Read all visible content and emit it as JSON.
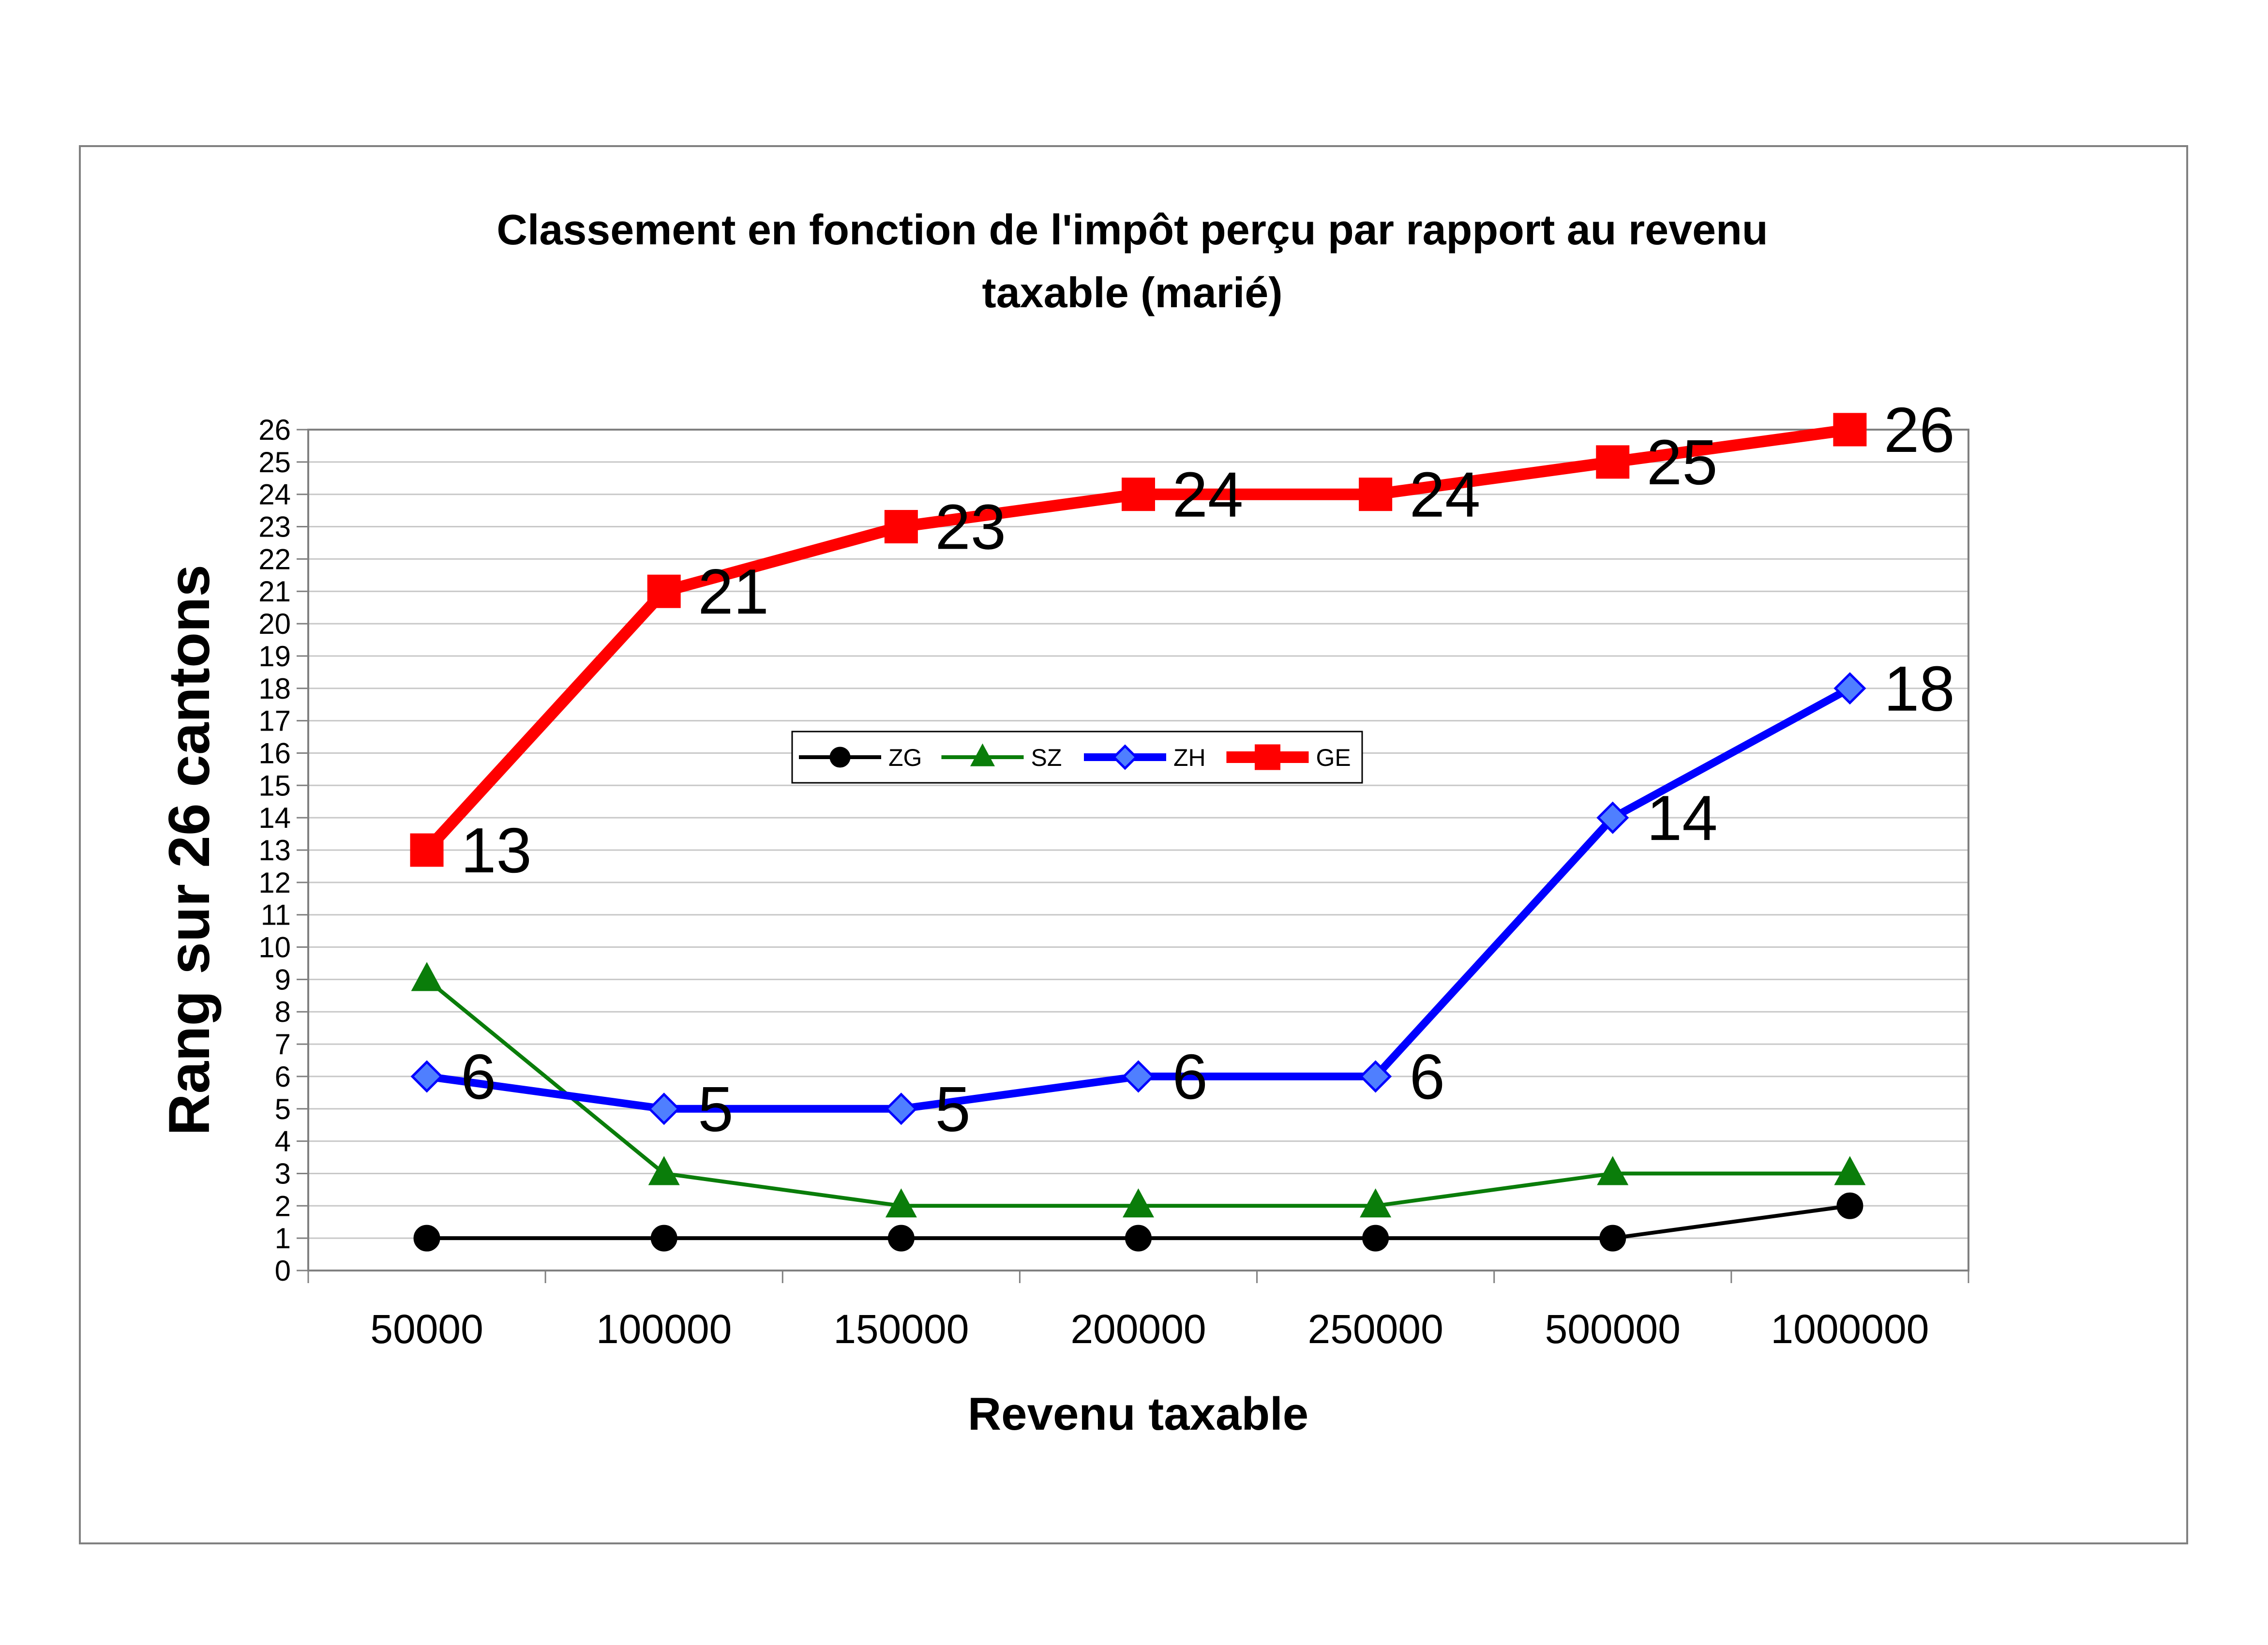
{
  "chart_data": {
    "type": "line",
    "title": "Classement en fonction de l'impôt perçu par rapport au revenu taxable (marié)",
    "title_lines": [
      "Classement en fonction de l'impôt perçu par rapport au revenu",
      "taxable (marié)"
    ],
    "xlabel": "Revenu taxable",
    "ylabel": "Rang sur 26 cantons",
    "categories": [
      "50000",
      "100000",
      "150000",
      "200000",
      "250000",
      "500000",
      "1000000"
    ],
    "ylim": [
      0,
      26
    ],
    "ytick_step": 1,
    "grid": "horizontal",
    "legend_position": "center",
    "series": [
      {
        "name": "ZG",
        "values": [
          1,
          1,
          1,
          1,
          1,
          1,
          2
        ],
        "color": "#000000",
        "marker": "circle",
        "data_labels": false
      },
      {
        "name": "SZ",
        "values": [
          9,
          3,
          2,
          2,
          2,
          3,
          3
        ],
        "color": "#0a7d0a",
        "marker": "triangle",
        "data_labels": false
      },
      {
        "name": "ZH",
        "values": [
          6,
          5,
          5,
          6,
          6,
          14,
          18
        ],
        "color": "#0000ff",
        "marker": "diamond",
        "marker_fill": "#4f7fff",
        "data_labels": true
      },
      {
        "name": "GE",
        "values": [
          13,
          21,
          23,
          24,
          24,
          25,
          26
        ],
        "color": "#ff0000",
        "marker": "square",
        "data_labels": true
      }
    ]
  }
}
